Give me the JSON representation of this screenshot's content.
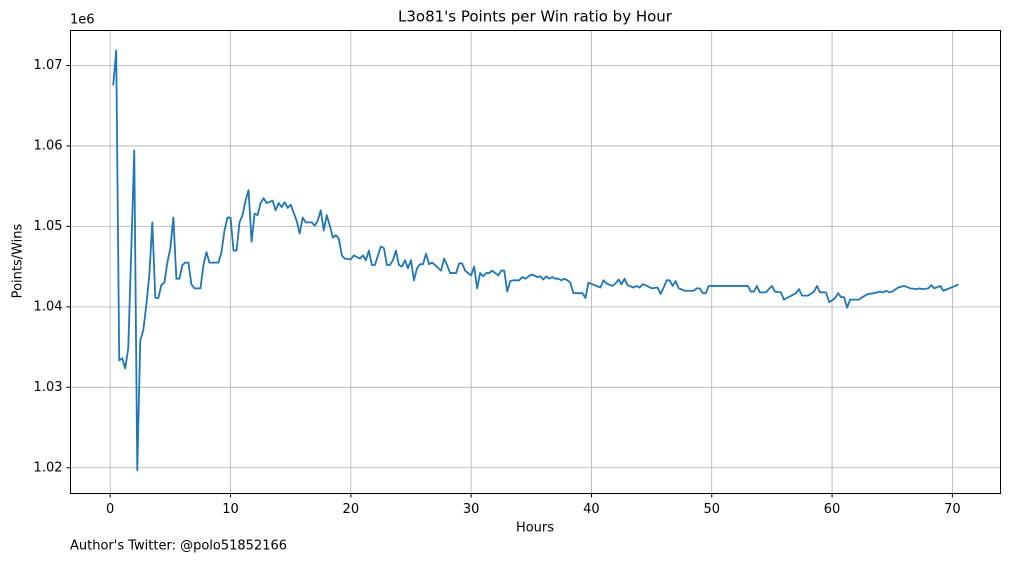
{
  "chart_data": {
    "type": "line",
    "title": "L3o81's Points per Win ratio by Hour",
    "x_label": "Hours",
    "y_label": "Points/Wins",
    "y_offset_label": "1e6",
    "footer": "Author's Twitter: @polo51852166",
    "grid": true,
    "xlim": [
      -3.3,
      74.0
    ],
    "ylim": [
      1016800,
      1074350
    ],
    "xticks": [
      0,
      10,
      20,
      30,
      40,
      50,
      60,
      70
    ],
    "yticks": [
      {
        "value": 1020000,
        "label": "1.02"
      },
      {
        "value": 1030000,
        "label": "1.03"
      },
      {
        "value": 1040000,
        "label": "1.04"
      },
      {
        "value": 1050000,
        "label": "1.05"
      },
      {
        "value": 1060000,
        "label": "1.06"
      },
      {
        "value": 1070000,
        "label": "1.07"
      }
    ],
    "series": [
      {
        "name": "Points/Wins",
        "color": "#1f77b4",
        "x": [
          0.25,
          0.5,
          0.75,
          1.0,
          1.25,
          1.5,
          1.75,
          2.0,
          2.25,
          2.5,
          2.75,
          3.0,
          3.25,
          3.5,
          3.75,
          4.0,
          4.25,
          4.5,
          4.75,
          5.0,
          5.25,
          5.5,
          5.75,
          6.0,
          6.25,
          6.5,
          6.75,
          7.0,
          7.5,
          7.75,
          8.0,
          8.25,
          9.0,
          9.25,
          9.5,
          9.75,
          10.0,
          10.25,
          10.5,
          10.75,
          11.0,
          11.25,
          11.5,
          11.75,
          12.0,
          12.25,
          12.5,
          12.75,
          13.0,
          13.5,
          13.75,
          14.0,
          14.25,
          14.5,
          14.75,
          15.0,
          15.5,
          15.75,
          16.0,
          16.25,
          16.75,
          17.0,
          17.25,
          17.5,
          17.75,
          18.0,
          18.25,
          18.5,
          18.75,
          19.0,
          19.25,
          19.5,
          20.0,
          20.25,
          20.75,
          21.0,
          21.25,
          21.5,
          21.75,
          22.0,
          22.5,
          22.75,
          23.0,
          23.25,
          23.5,
          23.75,
          24.0,
          24.25,
          24.5,
          24.75,
          25.0,
          25.25,
          25.5,
          25.75,
          26.0,
          26.25,
          26.5,
          26.75,
          27.0,
          27.5,
          27.75,
          28.0,
          28.25,
          28.75,
          29.0,
          29.25,
          29.5,
          30.0,
          30.25,
          30.5,
          30.75,
          31.0,
          31.25,
          31.5,
          31.75,
          32.0,
          32.25,
          32.5,
          32.75,
          33.0,
          33.25,
          33.5,
          34.0,
          34.25,
          34.5,
          35.0,
          35.25,
          35.5,
          35.75,
          36.0,
          36.25,
          36.5,
          36.75,
          37.0,
          37.25,
          37.5,
          37.75,
          38.0,
          38.25,
          38.5,
          39.0,
          39.25,
          39.5,
          39.75,
          40.25,
          40.75,
          41.0,
          41.25,
          41.75,
          42.0,
          42.25,
          42.5,
          42.75,
          43.0,
          43.5,
          43.75,
          44.0,
          44.25,
          44.5,
          45.0,
          45.5,
          45.75,
          46.0,
          46.25,
          46.5,
          46.75,
          47.0,
          47.25,
          47.75,
          48.5,
          48.75,
          49.0,
          49.25,
          49.5,
          49.75,
          50.0,
          53.0,
          53.25,
          53.5,
          53.75,
          54.0,
          54.5,
          54.75,
          55.0,
          55.25,
          55.75,
          56.0,
          56.5,
          57.0,
          57.25,
          57.5,
          58.0,
          58.5,
          58.75,
          59.0,
          59.5,
          59.75,
          60.0,
          60.25,
          60.5,
          60.75,
          61.0,
          61.25,
          61.5,
          62.0,
          62.25,
          62.5,
          63.0,
          63.5,
          64.0,
          64.25,
          64.5,
          64.75,
          65.0,
          65.5,
          66.0,
          66.5,
          67.0,
          67.25,
          67.5,
          68.0,
          68.25,
          68.5,
          69.0,
          69.25,
          69.75,
          70.25,
          70.5
        ],
        "values": [
          1067520,
          1071860,
          1033350,
          1033600,
          1032360,
          1034840,
          1047000,
          1059440,
          1019690,
          1035840,
          1037100,
          1040200,
          1043900,
          1050500,
          1041100,
          1041100,
          1042700,
          1043000,
          1045500,
          1047300,
          1051100,
          1043500,
          1043500,
          1045200,
          1045500,
          1045500,
          1042800,
          1042300,
          1042300,
          1045200,
          1046800,
          1045500,
          1045500,
          1046800,
          1049500,
          1051100,
          1051100,
          1047000,
          1047000,
          1050500,
          1051400,
          1053200,
          1054500,
          1048100,
          1051600,
          1051400,
          1052900,
          1053500,
          1052900,
          1053200,
          1052000,
          1052900,
          1052400,
          1053000,
          1052300,
          1052700,
          1050700,
          1049100,
          1051100,
          1050500,
          1050500,
          1050100,
          1050700,
          1052000,
          1049500,
          1051400,
          1050100,
          1048600,
          1048900,
          1048500,
          1046400,
          1046000,
          1045900,
          1046400,
          1046000,
          1046400,
          1045800,
          1047000,
          1045200,
          1045200,
          1047500,
          1047300,
          1045200,
          1045200,
          1045800,
          1047000,
          1045200,
          1045000,
          1045800,
          1044800,
          1045800,
          1043300,
          1044800,
          1045300,
          1045300,
          1046600,
          1045300,
          1045500,
          1045200,
          1044500,
          1046000,
          1045200,
          1044200,
          1044200,
          1045400,
          1045400,
          1044500,
          1043900,
          1045000,
          1042300,
          1044200,
          1043800,
          1044200,
          1044200,
          1044500,
          1044200,
          1043900,
          1044500,
          1044500,
          1041900,
          1043200,
          1043300,
          1043300,
          1043700,
          1043500,
          1044000,
          1043900,
          1043700,
          1043800,
          1043400,
          1043800,
          1043500,
          1043700,
          1043500,
          1043500,
          1043300,
          1043500,
          1043300,
          1043000,
          1041700,
          1041700,
          1041700,
          1041100,
          1043000,
          1042700,
          1042400,
          1043300,
          1042900,
          1042600,
          1042900,
          1043400,
          1042800,
          1043500,
          1042700,
          1042400,
          1042600,
          1042400,
          1042800,
          1042700,
          1042300,
          1042400,
          1041600,
          1042400,
          1043300,
          1043300,
          1042600,
          1043200,
          1042300,
          1042000,
          1042000,
          1042300,
          1042300,
          1041700,
          1041700,
          1042600,
          1042600,
          1042600,
          1041900,
          1041900,
          1042600,
          1041800,
          1041800,
          1042200,
          1042600,
          1041900,
          1041800,
          1040900,
          1041300,
          1041700,
          1042200,
          1041400,
          1041400,
          1041900,
          1042600,
          1041800,
          1041800,
          1040600,
          1040800,
          1041100,
          1041700,
          1041200,
          1041200,
          1039900,
          1040900,
          1040900,
          1040900,
          1041200,
          1041600,
          1041700,
          1041900,
          1041800,
          1042000,
          1041800,
          1041900,
          1042400,
          1042600,
          1042300,
          1042200,
          1042300,
          1042200,
          1042300,
          1042700,
          1042300,
          1042600,
          1042000,
          1042300,
          1042600,
          1042800
        ]
      }
    ]
  }
}
